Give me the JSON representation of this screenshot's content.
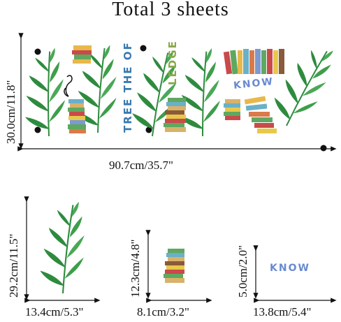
{
  "title": "Total 3 sheets",
  "main_sheet": {
    "width_label": "90.7cm/35.7\"",
    "height_label": "30.0cm/11.8\"",
    "text_tree": "TREE THE OF",
    "text_ledge": "LEDGE",
    "text_know": "KNOW"
  },
  "sheet_leaf": {
    "width_label": "13.4cm/5.3\"",
    "height_label": "29.2cm/11.5\""
  },
  "sheet_books": {
    "width_label": "8.1cm/3.2\"",
    "height_label": "12.3cm/4.8\""
  },
  "sheet_know": {
    "width_label": "13.8cm/5.4\"",
    "height_label": "5.0cm/2.0\"",
    "text": "KNOW"
  },
  "colors": {
    "leaf": "#2e8b3e",
    "leaf_light": "#5cb85c",
    "dot": "#111111"
  }
}
